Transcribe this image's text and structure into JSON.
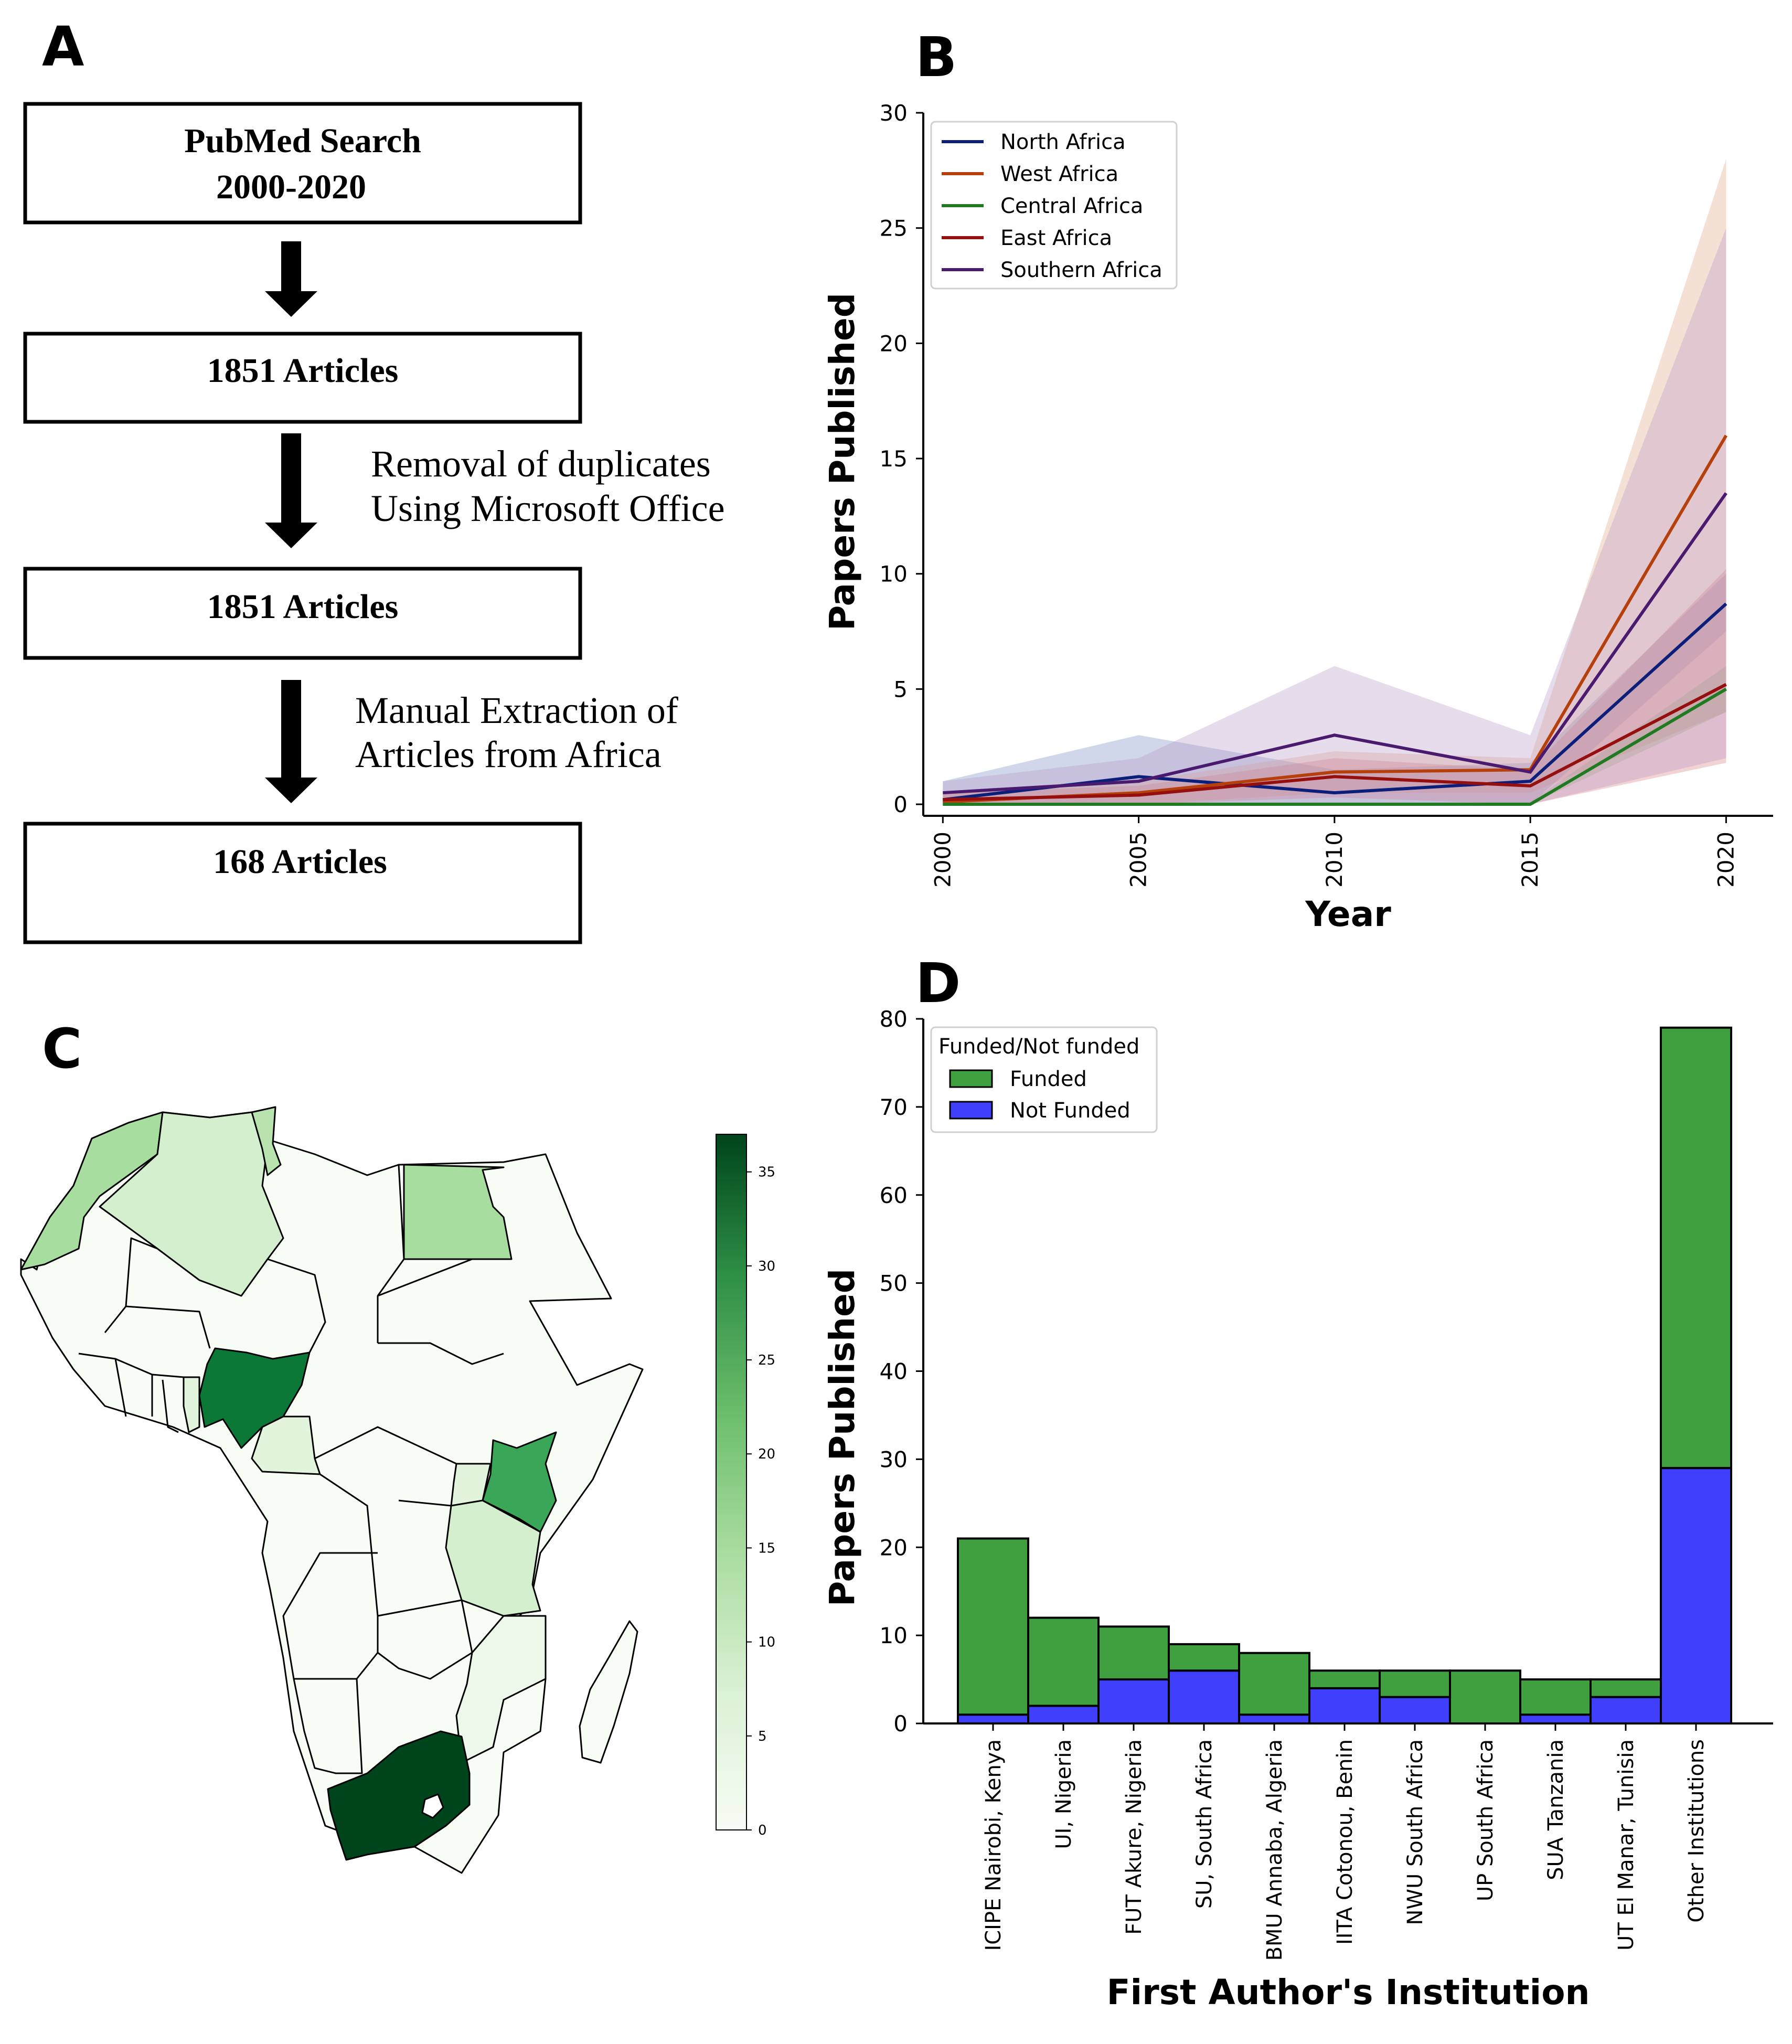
{
  "panels": {
    "a": "A",
    "b": "B",
    "c": "C",
    "d": "D"
  },
  "flow": {
    "box1_line1": "PubMed Search",
    "box1_line2": "2000-2020",
    "box2": "1851 Articles",
    "step1_line1": "Removal of duplicates",
    "step1_line2": "Using Microsoft Office",
    "box3": "1851 Articles",
    "step2_line1": "Manual Extraction of",
    "step2_line2": "Articles from Africa",
    "box4": "168 Articles"
  },
  "chart_data": [
    {
      "type": "line",
      "xlabel": "Year",
      "ylabel": "Papers Published",
      "x": [
        2000,
        2005,
        2010,
        2015,
        2020
      ],
      "xlim": [
        1999.5,
        2021.2
      ],
      "ylim": [
        -0.5,
        30
      ],
      "yticks": [
        0,
        5,
        10,
        15,
        20,
        25,
        30
      ],
      "legend_position": "top-left",
      "series": [
        {
          "name": "North Africa",
          "color": "#0b1f7a",
          "fill": "#6f86c2",
          "values": [
            0.2,
            1.2,
            0.5,
            1.0,
            8.7
          ],
          "lower": [
            0,
            0,
            0,
            0,
            7.5
          ],
          "upper": [
            1.0,
            3.0,
            1.5,
            1.8,
            10.0
          ]
        },
        {
          "name": "West Africa",
          "color": "#b5400c",
          "fill": "#e0a27e",
          "values": [
            0.1,
            0.5,
            1.4,
            1.5,
            16.0
          ],
          "lower": [
            0,
            0,
            0.5,
            0.5,
            4.0
          ],
          "upper": [
            0.5,
            1.0,
            2.3,
            2.0,
            28.0
          ]
        },
        {
          "name": "Central Africa",
          "color": "#1f7a22",
          "fill": "#7fbf7f",
          "values": [
            0.0,
            0.0,
            0.0,
            0.0,
            5.0
          ],
          "lower": [
            0,
            0,
            0,
            0,
            4.0
          ],
          "upper": [
            0.1,
            0.1,
            0.1,
            0.1,
            6.0
          ]
        },
        {
          "name": "East Africa",
          "color": "#960f0f",
          "fill": "#d87878",
          "values": [
            0.2,
            0.4,
            1.2,
            0.8,
            5.2
          ],
          "lower": [
            0,
            0,
            0.3,
            0,
            1.8
          ],
          "upper": [
            0.5,
            0.8,
            2.0,
            1.5,
            10.2
          ]
        },
        {
          "name": "Southern Africa",
          "color": "#4a1a6e",
          "fill": "#b594c4",
          "values": [
            0.5,
            1.0,
            3.0,
            1.4,
            13.5
          ],
          "lower": [
            0,
            0,
            0,
            0,
            2.0
          ],
          "upper": [
            1.0,
            2.0,
            6.0,
            3.0,
            25.0
          ]
        }
      ]
    },
    {
      "type": "heatmap",
      "colorbar_ticks": [
        0,
        5,
        10,
        15,
        20,
        25,
        30,
        35
      ],
      "colorbar_max": 37
    },
    {
      "type": "bar",
      "xlabel": "First Author's Institution",
      "ylabel": "Papers Published",
      "ylim": [
        0,
        80
      ],
      "yticks": [
        0,
        10,
        20,
        30,
        40,
        50,
        60,
        70,
        80
      ],
      "legend_title": "Funded/Not funded",
      "legend_position": "top-left",
      "categories": [
        "ICIPE Nairobi, Kenya",
        "UI, Nigeria",
        "FUT Akure, Nigeria",
        "SU, South Africa",
        "BMU Annaba, Algeria",
        "IITA Cotonou, Benin",
        "NWU South Africa",
        "UP South Africa",
        "SUA Tanzania",
        "UT El Manar, Tunisia",
        "Other Institutions"
      ],
      "series": [
        {
          "name": "Not Funded",
          "color": "#3f3ffc",
          "values": [
            1,
            2,
            5,
            6,
            1,
            4,
            3,
            0,
            1,
            3,
            29
          ]
        },
        {
          "name": "Funded",
          "color": "#40a040",
          "values": [
            20,
            10,
            6,
            3,
            7,
            2,
            3,
            6,
            4,
            2,
            50
          ]
        }
      ]
    }
  ]
}
